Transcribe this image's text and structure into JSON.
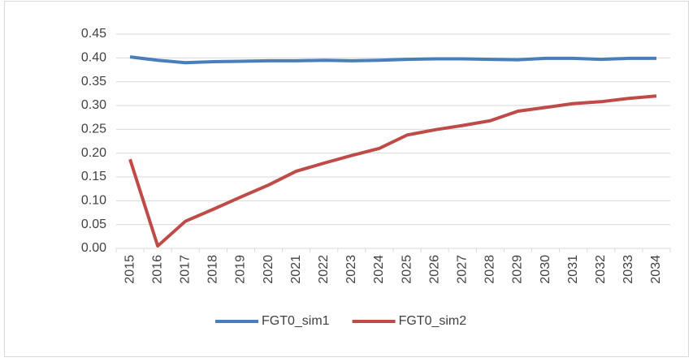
{
  "chart_data": {
    "type": "line",
    "categories": [
      "2015",
      "2016",
      "2017",
      "2018",
      "2019",
      "2020",
      "2021",
      "2022",
      "2023",
      "2024",
      "2025",
      "2026",
      "2027",
      "2028",
      "2029",
      "2030",
      "2031",
      "2032",
      "2033",
      "2034"
    ],
    "series": [
      {
        "name": "FGT0_sim1",
        "color": "#4a7ebb",
        "values": [
          0.402,
          0.395,
          0.39,
          0.392,
          0.393,
          0.394,
          0.394,
          0.395,
          0.394,
          0.395,
          0.397,
          0.398,
          0.398,
          0.397,
          0.396,
          0.399,
          0.399,
          0.397,
          0.399,
          0.399
        ]
      },
      {
        "name": "FGT0_sim2",
        "color": "#be4b48",
        "values": [
          0.187,
          0.005,
          0.057,
          0.082,
          0.108,
          0.133,
          0.162,
          0.179,
          0.195,
          0.21,
          0.238,
          0.249,
          0.258,
          0.268,
          0.288,
          0.296,
          0.304,
          0.308,
          0.315,
          0.32
        ]
      }
    ],
    "ylim": [
      0,
      0.45
    ],
    "yticks": [
      {
        "value": 0,
        "label": "0.00"
      },
      {
        "value": 0.05,
        "label": "0.05"
      },
      {
        "value": 0.1,
        "label": "0.10"
      },
      {
        "value": 0.15,
        "label": "0.15"
      },
      {
        "value": 0.2,
        "label": "0.20"
      },
      {
        "value": 0.25,
        "label": "0.25"
      },
      {
        "value": 0.3,
        "label": "0.30"
      },
      {
        "value": 0.35,
        "label": "0.35"
      },
      {
        "value": 0.4,
        "label": "0.40"
      },
      {
        "value": 0.45,
        "label": "0.45"
      }
    ],
    "grid": true,
    "legend": "bottom"
  }
}
